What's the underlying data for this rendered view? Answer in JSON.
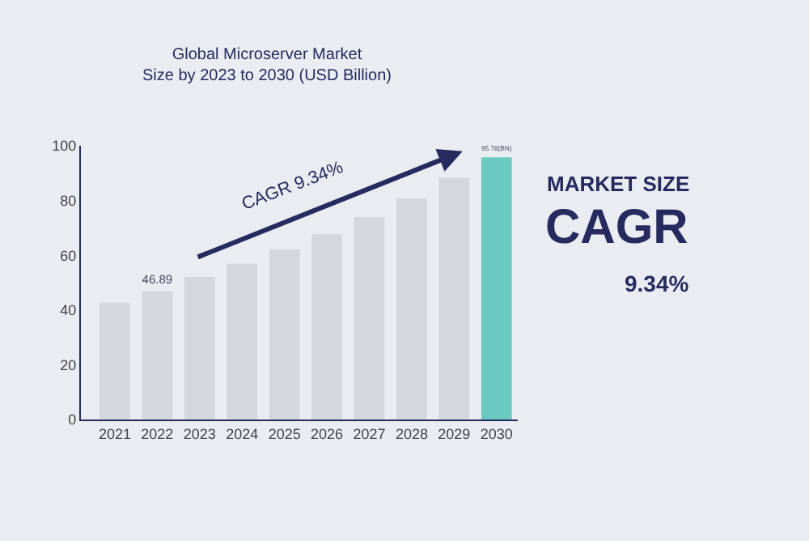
{
  "chart_data": {
    "type": "bar",
    "title": "Global Microserver Market\nSize by 2023 to 2030 (USD Billion)",
    "categories": [
      "2021",
      "2022",
      "2023",
      "2024",
      "2025",
      "2026",
      "2027",
      "2028",
      "2029",
      "2030"
    ],
    "values": [
      42.7,
      46.89,
      52.1,
      56.9,
      62.1,
      67.7,
      74.0,
      80.8,
      88.3,
      95.78
    ],
    "value_labels": [
      null,
      "46.89",
      null,
      null,
      null,
      null,
      null,
      null,
      null,
      "95.78(BN)"
    ],
    "colors": [
      "#d3d8dc",
      "#d3d8dc",
      "#d3d8dc",
      "#d3d8dc",
      "#d3d8dc",
      "#d3d8dc",
      "#d3d8dc",
      "#d3d8dc",
      "#d3d8dc",
      "#6cc9c1"
    ],
    "ylim": [
      0,
      100
    ],
    "yticks": [
      0,
      20,
      40,
      60,
      80,
      100
    ],
    "grid": false,
    "legend": false,
    "annotations": [
      "CAGR 9.34%",
      "MARKET SIZE",
      "CAGR",
      "9.34%"
    ]
  }
}
